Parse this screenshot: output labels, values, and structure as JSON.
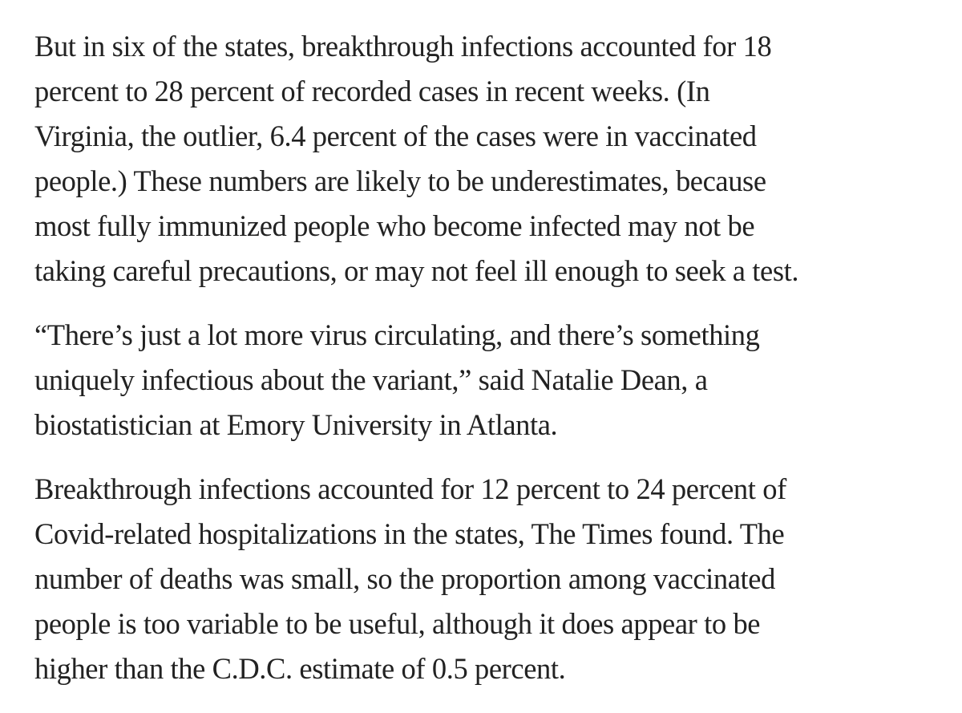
{
  "article": {
    "paragraphs": [
      {
        "lines": [
          "But in six of the states, breakthrough infections accounted for 18",
          "percent to 28 percent of recorded cases in recent weeks. (In",
          "Virginia, the outlier, 6.4 percent of the cases were in vaccinated",
          "people.) These numbers are likely to be underestimates, because",
          "most fully immunized people who become infected may not be",
          "taking careful precautions, or may not feel ill enough to seek a test."
        ]
      },
      {
        "lines": [
          "“There’s just a lot more virus circulating, and there’s something",
          "uniquely infectious about the variant,” said Natalie Dean, a",
          "biostatistician at Emory University in Atlanta."
        ]
      },
      {
        "lines": [
          "Breakthrough infections accounted for 12 percent to 24 percent of",
          "Covid-related hospitalizations in the states, The Times found. The",
          "number of deaths was small, so the proportion among vaccinated",
          "people is too variable to be useful, although it does appear to be",
          "higher than the C.D.C. estimate of 0.5 percent."
        ]
      }
    ]
  }
}
